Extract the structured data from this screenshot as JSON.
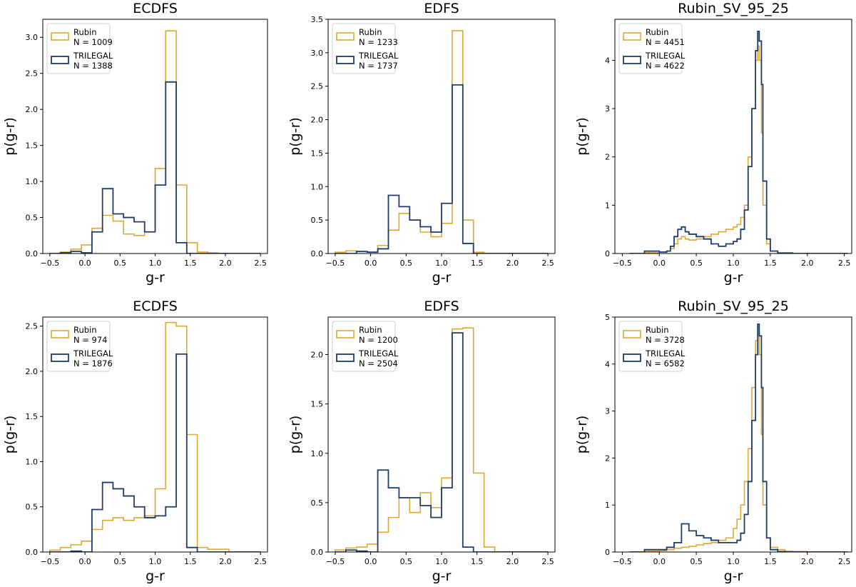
{
  "colors": {
    "rubin": "#DDA933",
    "trilegal": "#1F3B6B",
    "axes": "#000000"
  },
  "chart_data": [
    {
      "type": "histogram-step",
      "title": "ECDFS",
      "xlabel": "g-r",
      "ylabel": "p(g-r)",
      "xlim": [
        -0.6,
        2.6
      ],
      "ylim": [
        0,
        3.25
      ],
      "xticks": [
        -0.5,
        0.0,
        0.5,
        1.0,
        1.5,
        2.0,
        2.5
      ],
      "xtick_labels": [
        "−0.5",
        "0.0",
        "0.5",
        "1.0",
        "1.5",
        "2.0",
        "2.5"
      ],
      "yticks": [
        0,
        0.5,
        1.0,
        1.5,
        2.0,
        2.5,
        3.0
      ],
      "ytick_labels": [
        "0.0",
        "0.5",
        "1.0",
        "1.5",
        "2.0",
        "2.5",
        "3.0"
      ],
      "legend_position": "top-left",
      "series": [
        {
          "name": "Rubin",
          "n_label": "N = 1009",
          "color": "#DDA933",
          "edges": [
            -0.5,
            -0.35,
            -0.2,
            -0.05,
            0.1,
            0.25,
            0.4,
            0.55,
            0.7,
            0.85,
            1.0,
            1.15,
            1.3,
            1.45,
            1.6,
            1.75,
            1.9,
            2.05,
            2.2,
            2.35,
            2.5
          ],
          "values": [
            0.0,
            0.02,
            0.06,
            0.12,
            0.35,
            0.53,
            0.45,
            0.27,
            0.25,
            0.3,
            1.18,
            3.09,
            0.95,
            0.15,
            0.02,
            0.01,
            0.0,
            0.0,
            0.0,
            0.0
          ]
        },
        {
          "name": "TRILEGAL",
          "n_label": "N = 1388",
          "color": "#1F3B6B",
          "edges": [
            -0.5,
            -0.35,
            -0.2,
            -0.05,
            0.1,
            0.25,
            0.4,
            0.55,
            0.7,
            0.85,
            1.0,
            1.15,
            1.3,
            1.45,
            1.6,
            1.75,
            1.9,
            2.05,
            2.2,
            2.35,
            2.5
          ],
          "values": [
            0.0,
            0.01,
            0.03,
            0.01,
            0.3,
            0.9,
            0.55,
            0.5,
            0.44,
            0.3,
            0.95,
            2.38,
            0.15,
            0.0,
            0.0,
            0.0,
            0.0,
            0.0,
            0.0,
            0.0
          ]
        }
      ]
    },
    {
      "type": "histogram-step",
      "title": "EDFS",
      "xlabel": "g-r",
      "ylabel": "p(g-r)",
      "xlim": [
        -0.6,
        2.6
      ],
      "ylim": [
        0,
        3.5
      ],
      "xticks": [
        -0.5,
        0.0,
        0.5,
        1.0,
        1.5,
        2.0,
        2.5
      ],
      "xtick_labels": [
        "−0.5",
        "0.0",
        "0.5",
        "1.0",
        "1.5",
        "2.0",
        "2.5"
      ],
      "yticks": [
        0,
        0.5,
        1.0,
        1.5,
        2.0,
        2.5,
        3.0,
        3.5
      ],
      "ytick_labels": [
        "0.0",
        "0.5",
        "1.0",
        "1.5",
        "2.0",
        "2.5",
        "3.0",
        "3.5"
      ],
      "legend_position": "top-left",
      "series": [
        {
          "name": "Rubin",
          "n_label": "N = 1233",
          "color": "#DDA933",
          "edges": [
            -0.5,
            -0.35,
            -0.2,
            -0.05,
            0.1,
            0.25,
            0.4,
            0.55,
            0.7,
            0.85,
            1.0,
            1.15,
            1.3,
            1.45,
            1.6,
            1.75,
            1.9,
            2.05,
            2.2,
            2.35,
            2.5
          ],
          "values": [
            0.02,
            0.04,
            0.03,
            0.02,
            0.12,
            0.35,
            0.6,
            0.5,
            0.32,
            0.25,
            0.45,
            3.33,
            0.5,
            0.02,
            0.0,
            0.0,
            0.0,
            0.0,
            0.0,
            0.0
          ]
        },
        {
          "name": "TRILEGAL",
          "n_label": "N = 1737",
          "color": "#1F3B6B",
          "edges": [
            -0.5,
            -0.35,
            -0.2,
            -0.05,
            0.1,
            0.25,
            0.4,
            0.55,
            0.7,
            0.85,
            1.0,
            1.15,
            1.3,
            1.45,
            1.6,
            1.75,
            1.9,
            2.05,
            2.2,
            2.35,
            2.5
          ],
          "values": [
            0.0,
            0.0,
            0.03,
            0.02,
            0.07,
            0.87,
            0.7,
            0.5,
            0.4,
            0.32,
            0.75,
            2.52,
            0.15,
            0.0,
            0.0,
            0.0,
            0.0,
            0.0,
            0.0,
            0.0
          ]
        }
      ]
    },
    {
      "type": "histogram-step",
      "title": "Rubin_SV_95_25",
      "xlabel": "g-r",
      "ylabel": "p(g-r)",
      "xlim": [
        -0.6,
        2.6
      ],
      "ylim": [
        0,
        4.85
      ],
      "xticks": [
        -0.5,
        0.0,
        0.5,
        1.0,
        1.5,
        2.0,
        2.5
      ],
      "xtick_labels": [
        "−0.5",
        "0.0",
        "0.5",
        "1.0",
        "1.5",
        "2.0",
        "2.5"
      ],
      "yticks": [
        0,
        1,
        2,
        3,
        4
      ],
      "ytick_labels": [
        "0",
        "1",
        "2",
        "3",
        "4"
      ],
      "legend_position": "top-left",
      "series": [
        {
          "name": "Rubin",
          "n_label": "N = 4451",
          "color": "#DDA933",
          "x": [
            -0.4,
            -0.2,
            0.0,
            0.1,
            0.15,
            0.2,
            0.25,
            0.3,
            0.35,
            0.4,
            0.5,
            0.6,
            0.7,
            0.8,
            0.9,
            1.0,
            1.05,
            1.1,
            1.15,
            1.2,
            1.25,
            1.3,
            1.33,
            1.35,
            1.38,
            1.4,
            1.45,
            1.5,
            1.6,
            1.8,
            2.0,
            2.5
          ],
          "values": [
            0.0,
            0.02,
            0.03,
            0.05,
            0.1,
            0.2,
            0.3,
            0.35,
            0.3,
            0.28,
            0.3,
            0.35,
            0.4,
            0.45,
            0.5,
            0.55,
            0.6,
            0.75,
            1.0,
            2.0,
            3.0,
            4.0,
            4.3,
            4.0,
            2.5,
            1.0,
            0.2,
            0.05,
            0.01,
            0.0,
            0.0,
            0.0
          ]
        },
        {
          "name": "TRILEGAL",
          "n_label": "N = 4622",
          "color": "#1F3B6B",
          "x": [
            -0.4,
            -0.2,
            0.0,
            0.1,
            0.15,
            0.2,
            0.25,
            0.3,
            0.35,
            0.4,
            0.5,
            0.6,
            0.7,
            0.8,
            0.9,
            1.0,
            1.05,
            1.1,
            1.15,
            1.2,
            1.25,
            1.3,
            1.33,
            1.35,
            1.38,
            1.4,
            1.45,
            1.5,
            1.6,
            1.8,
            2.0,
            2.5
          ],
          "values": [
            0.0,
            0.05,
            0.03,
            0.05,
            0.15,
            0.35,
            0.5,
            0.55,
            0.45,
            0.4,
            0.35,
            0.3,
            0.2,
            0.15,
            0.2,
            0.25,
            0.3,
            0.5,
            0.9,
            1.8,
            3.0,
            4.2,
            4.6,
            4.4,
            3.5,
            1.5,
            0.3,
            0.05,
            0.01,
            0.0,
            0.0,
            0.0
          ]
        }
      ]
    },
    {
      "type": "histogram-step",
      "title": "ECDFS",
      "xlabel": "g-r",
      "ylabel": "p(g-r)",
      "xlim": [
        -0.6,
        2.6
      ],
      "ylim": [
        0,
        2.6
      ],
      "xticks": [
        -0.5,
        0.0,
        0.5,
        1.0,
        1.5,
        2.0,
        2.5
      ],
      "xtick_labels": [
        "−0.5",
        "0.0",
        "0.5",
        "1.0",
        "1.5",
        "2.0",
        "2.5"
      ],
      "yticks": [
        0,
        0.5,
        1.0,
        1.5,
        2.0,
        2.5
      ],
      "ytick_labels": [
        "0.0",
        "0.5",
        "1.0",
        "1.5",
        "2.0",
        "2.5"
      ],
      "legend_position": "top-left",
      "series": [
        {
          "name": "Rubin",
          "n_label": "N = 974",
          "color": "#DDA933",
          "edges": [
            -0.5,
            -0.35,
            -0.2,
            -0.05,
            0.1,
            0.25,
            0.4,
            0.55,
            0.7,
            0.85,
            1.0,
            1.15,
            1.3,
            1.45,
            1.6,
            1.75,
            1.9,
            2.05,
            2.2,
            2.35,
            2.5
          ],
          "values": [
            0.02,
            0.05,
            0.08,
            0.12,
            0.25,
            0.35,
            0.38,
            0.35,
            0.38,
            0.4,
            0.7,
            2.54,
            2.5,
            1.3,
            0.05,
            0.03,
            0.03,
            0.0,
            0.0,
            0.0
          ]
        },
        {
          "name": "TRILEGAL",
          "n_label": "N = 1876",
          "color": "#1F3B6B",
          "edges": [
            -0.5,
            -0.35,
            -0.2,
            -0.05,
            0.1,
            0.25,
            0.4,
            0.55,
            0.7,
            0.85,
            1.0,
            1.15,
            1.3,
            1.45,
            1.6,
            1.75,
            1.9,
            2.05,
            2.2,
            2.35,
            2.5
          ],
          "values": [
            0.0,
            0.0,
            0.01,
            0.0,
            0.47,
            0.77,
            0.7,
            0.62,
            0.5,
            0.38,
            0.4,
            0.5,
            2.19,
            0.05,
            0.0,
            0.0,
            0.0,
            0.0,
            0.0,
            0.0
          ]
        }
      ]
    },
    {
      "type": "histogram-step",
      "title": "EDFS",
      "xlabel": "g-r",
      "ylabel": "p(g-r)",
      "xlim": [
        -0.6,
        2.6
      ],
      "ylim": [
        0,
        2.38
      ],
      "xticks": [
        -0.5,
        0.0,
        0.5,
        1.0,
        1.5,
        2.0,
        2.5
      ],
      "xtick_labels": [
        "−0.5",
        "0.0",
        "0.5",
        "1.0",
        "1.5",
        "2.0",
        "2.5"
      ],
      "yticks": [
        0,
        0.5,
        1.0,
        1.5,
        2.0
      ],
      "ytick_labels": [
        "0.0",
        "0.5",
        "1.0",
        "1.5",
        "2.0"
      ],
      "legend_position": "top-left",
      "series": [
        {
          "name": "Rubin",
          "n_label": "N = 1200",
          "color": "#DDA933",
          "edges": [
            -0.5,
            -0.35,
            -0.2,
            -0.05,
            0.1,
            0.25,
            0.4,
            0.55,
            0.7,
            0.85,
            1.0,
            1.15,
            1.3,
            1.45,
            1.6,
            1.75,
            1.9,
            2.05,
            2.2,
            2.35,
            2.5
          ],
          "values": [
            0.02,
            0.04,
            0.05,
            0.08,
            0.2,
            0.35,
            0.55,
            0.4,
            0.6,
            0.45,
            0.75,
            2.26,
            2.27,
            0.8,
            0.05,
            0.0,
            0.0,
            0.0,
            0.0,
            0.0
          ]
        },
        {
          "name": "TRILEGAL",
          "n_label": "N = 2504",
          "color": "#1F3B6B",
          "edges": [
            -0.5,
            -0.35,
            -0.2,
            -0.05,
            0.1,
            0.25,
            0.4,
            0.55,
            0.7,
            0.85,
            1.0,
            1.15,
            1.3,
            1.45,
            1.6,
            1.75,
            1.9,
            2.05,
            2.2,
            2.35,
            2.5
          ],
          "values": [
            0.0,
            0.02,
            0.01,
            0.0,
            0.83,
            0.65,
            0.55,
            0.55,
            0.47,
            0.35,
            0.65,
            2.22,
            0.05,
            0.0,
            0.0,
            0.0,
            0.0,
            0.0,
            0.0,
            0.0
          ]
        }
      ]
    },
    {
      "type": "histogram-step",
      "title": "Rubin_SV_95_25",
      "xlabel": "g-r",
      "ylabel": "p(g-r)",
      "xlim": [
        -0.6,
        2.6
      ],
      "ylim": [
        0,
        5.0
      ],
      "xticks": [
        -0.5,
        0.0,
        0.5,
        1.0,
        1.5,
        2.0,
        2.5
      ],
      "xtick_labels": [
        "−0.5",
        "0.0",
        "0.5",
        "1.0",
        "1.5",
        "2.0",
        "2.5"
      ],
      "yticks": [
        0,
        1,
        2,
        3,
        4,
        5
      ],
      "ytick_labels": [
        "0",
        "1",
        "2",
        "3",
        "4",
        "5"
      ],
      "legend_position": "top-left",
      "series": [
        {
          "name": "Rubin",
          "n_label": "N = 3728",
          "color": "#DDA933",
          "x": [
            -0.4,
            -0.2,
            0.0,
            0.1,
            0.2,
            0.3,
            0.4,
            0.5,
            0.6,
            0.7,
            0.8,
            0.9,
            1.0,
            1.05,
            1.1,
            1.15,
            1.2,
            1.25,
            1.3,
            1.33,
            1.35,
            1.38,
            1.4,
            1.45,
            1.5,
            1.6,
            1.7,
            1.8,
            2.0,
            2.5
          ],
          "values": [
            0.0,
            0.02,
            0.03,
            0.05,
            0.08,
            0.1,
            0.12,
            0.15,
            0.18,
            0.2,
            0.25,
            0.3,
            0.5,
            0.7,
            1.0,
            1.5,
            2.2,
            3.5,
            4.5,
            4.8,
            4.2,
            2.5,
            1.0,
            0.3,
            0.1,
            0.05,
            0.02,
            0.01,
            0.0,
            0.0
          ]
        },
        {
          "name": "TRILEGAL",
          "n_label": "N = 6582",
          "color": "#1F3B6B",
          "x": [
            -0.4,
            -0.2,
            0.0,
            0.1,
            0.2,
            0.3,
            0.4,
            0.5,
            0.6,
            0.7,
            0.8,
            0.9,
            1.0,
            1.05,
            1.1,
            1.15,
            1.2,
            1.25,
            1.3,
            1.33,
            1.35,
            1.38,
            1.4,
            1.45,
            1.5,
            1.6,
            1.7,
            1.8,
            2.0,
            2.5
          ],
          "values": [
            0.0,
            0.05,
            0.05,
            0.1,
            0.2,
            0.6,
            0.45,
            0.35,
            0.3,
            0.25,
            0.2,
            0.2,
            0.2,
            0.25,
            0.4,
            0.8,
            1.5,
            2.8,
            4.2,
            4.85,
            4.6,
            3.5,
            1.5,
            0.3,
            0.05,
            0.01,
            0.0,
            0.0,
            0.0,
            0.0
          ]
        }
      ]
    }
  ]
}
